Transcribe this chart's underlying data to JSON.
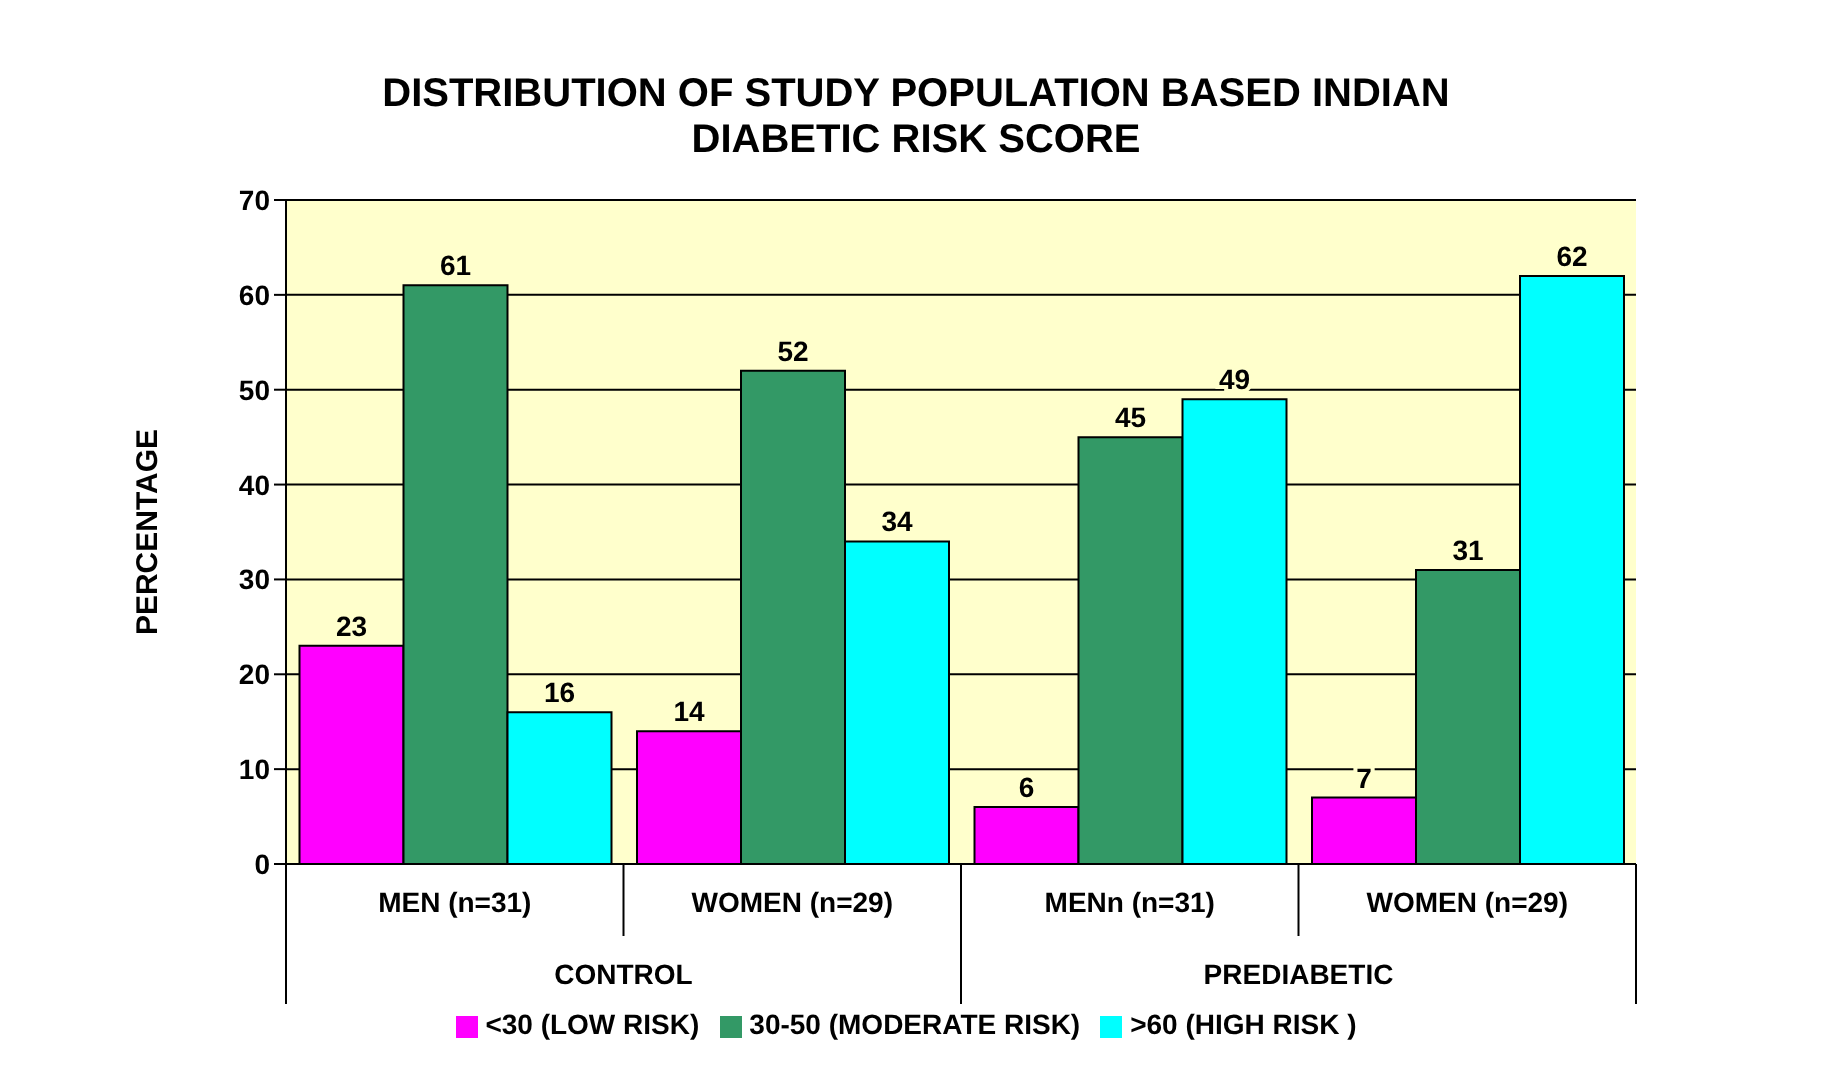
{
  "chart_data": {
    "type": "bar",
    "title": "DISTRIBUTION OF STUDY POPULATION BASED INDIAN DIABETIC RISK SCORE",
    "ylabel": "PERCENTAGE",
    "categories": [
      "MEN (n=31)",
      "WOMEN (n=29)",
      "MENn (n=31)",
      "WOMEN (n=29)"
    ],
    "series": [
      {
        "name": "<30 (LOW RISK)",
        "color": "#ff00ff",
        "values": [
          23,
          14,
          6,
          7
        ]
      },
      {
        "name": "30-50 (MODERATE RISK)",
        "color": "#339966",
        "values": [
          61,
          52,
          45,
          31
        ]
      },
      {
        "name": ">60 (HIGH RISK )",
        "color": "#00ffff",
        "values": [
          16,
          34,
          49,
          62
        ]
      }
    ],
    "annotations": [
      "CONTROL",
      "PREDIABETIC"
    ],
    "ylim": [
      0,
      70
    ],
    "yticks": [
      0,
      10,
      20,
      30,
      40,
      50,
      60,
      70
    ],
    "grid": "y",
    "legend": "bottom",
    "data_labels": true
  }
}
